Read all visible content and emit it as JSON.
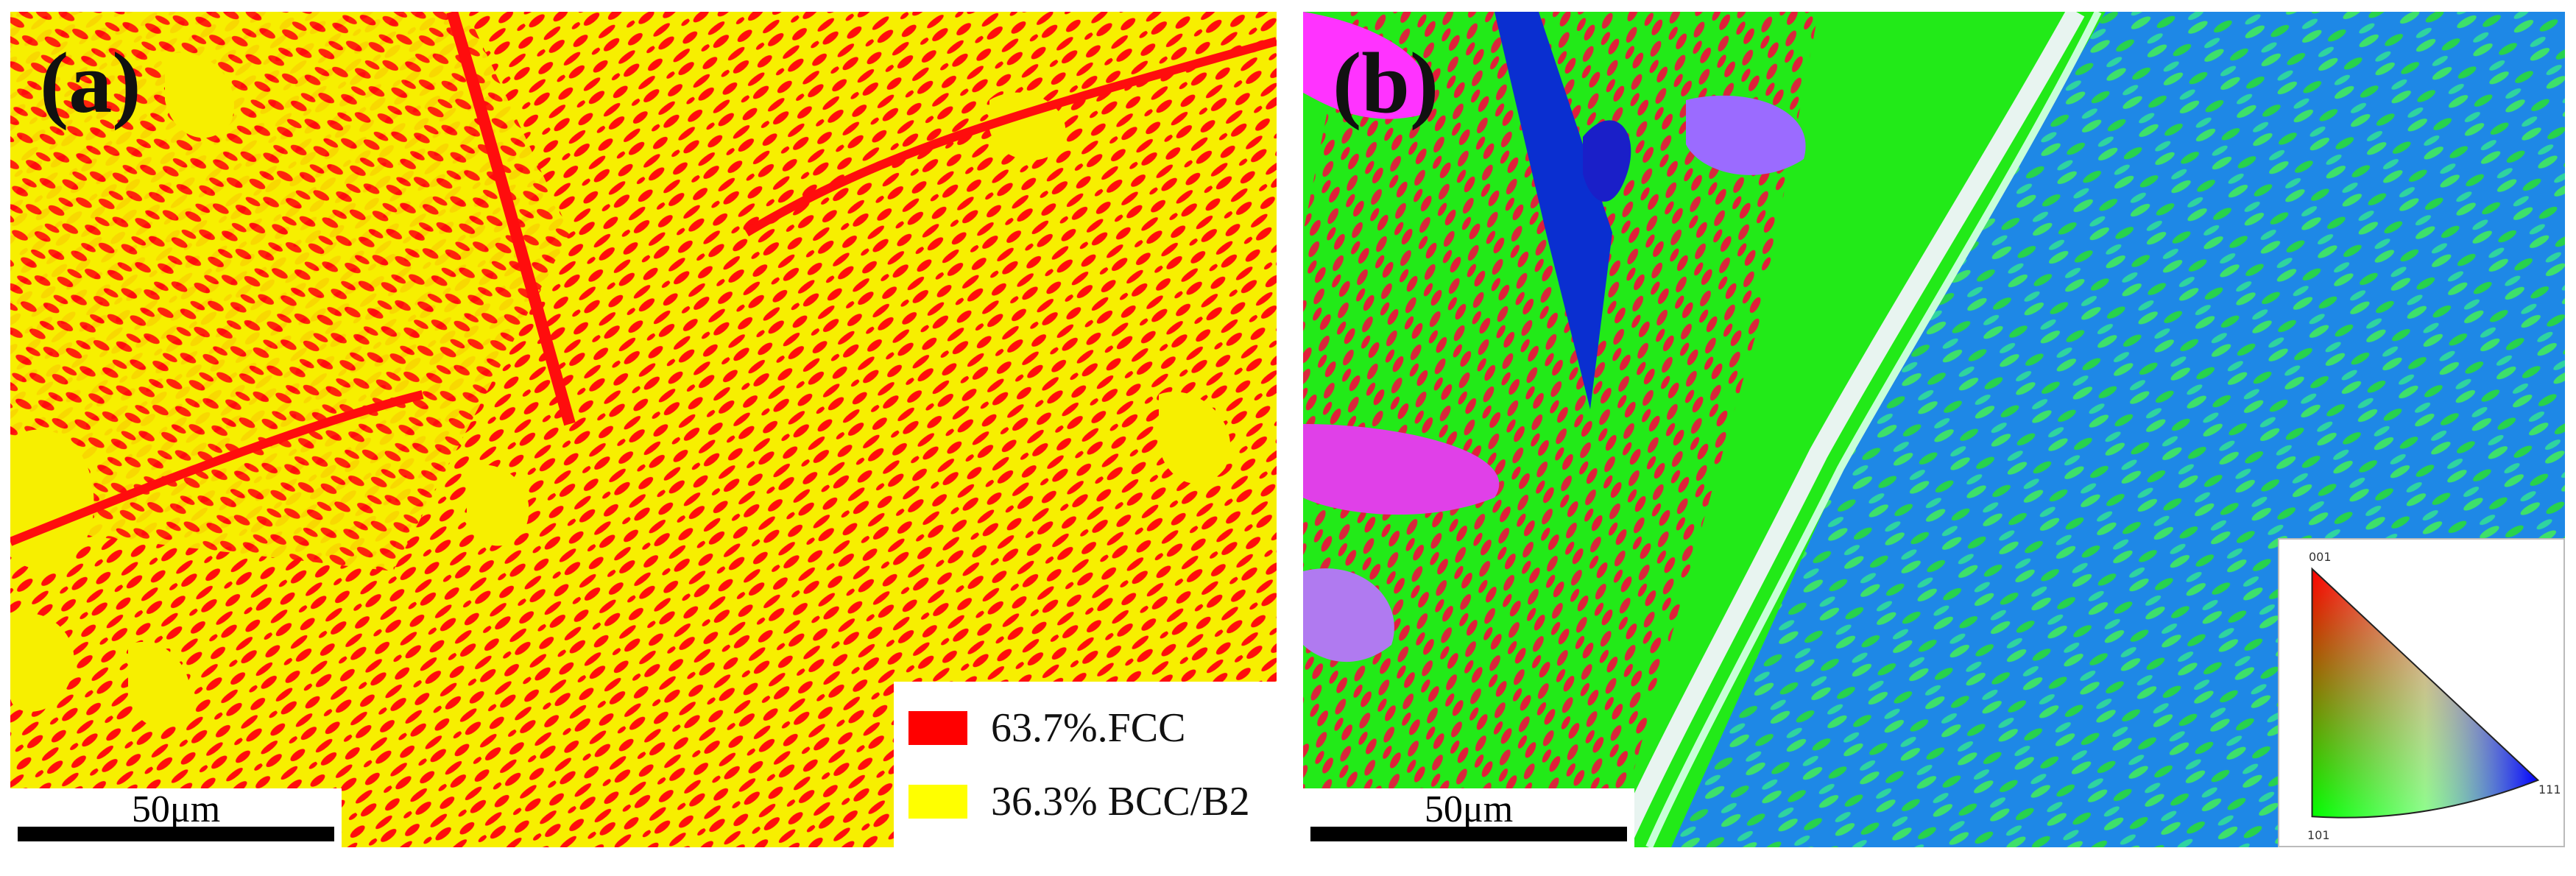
{
  "panel_a": {
    "label": "(a)",
    "scalebar": "50μm",
    "legend": [
      {
        "label": "63.7%.FCC",
        "color": "#ff0000"
      },
      {
        "label": "36.3% BCC/B2",
        "color": "#ffff00"
      }
    ],
    "phase_colors": {
      "fcc": "#ff0d0d",
      "bcc_b2": "#f7ef00"
    }
  },
  "panel_b": {
    "label": "(b)",
    "scalebar": "50μm",
    "ipf_key": {
      "corner_001": "001",
      "corner_101": "101",
      "corner_111": "111",
      "colors": {
        "001": "#ff0000",
        "101": "#00ff00",
        "111": "#0000ff"
      }
    },
    "orientation_colors": [
      "#22ea18",
      "#e0203a",
      "#1e88e6",
      "#3aa0ff",
      "#ff33ff",
      "#0a2fd0",
      "#9b6bff",
      "#ffffff"
    ]
  }
}
